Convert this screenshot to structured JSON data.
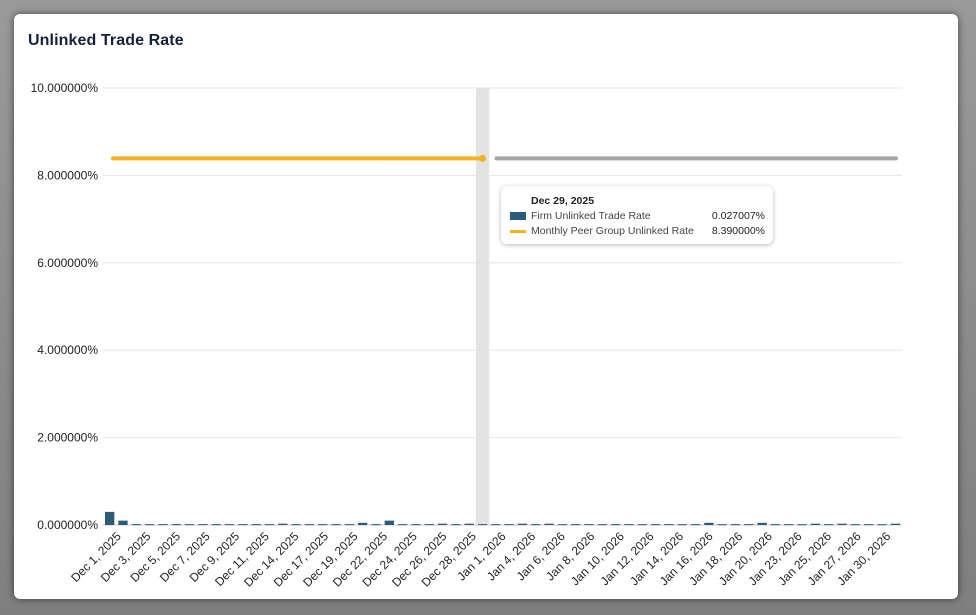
{
  "title": "Unlinked Trade Rate",
  "colors": {
    "bar": "#2c5b79",
    "peer_line": "#f4b122",
    "peer_line_future": "#a3a3a3",
    "hover_band": "#e3e3e3",
    "grid": "#e6e6e6"
  },
  "chart_data": {
    "type": "bar",
    "title": "Unlinked Trade Rate",
    "xlabel": "",
    "ylabel": "",
    "ylim": [
      0,
      10
    ],
    "grid": true,
    "y_ticks": [
      "0.000000%",
      "2.000000%",
      "4.000000%",
      "6.000000%",
      "8.000000%",
      "10.000000%"
    ],
    "x_tick_labels": [
      "Dec 1, 2025",
      "Dec 3, 2025",
      "Dec 5, 2025",
      "Dec 7, 2025",
      "Dec 9, 2025",
      "Dec 11, 2025",
      "Dec 14, 2025",
      "Dec 17, 2025",
      "Dec 19, 2025",
      "Dec 22, 2025",
      "Dec 24, 2025",
      "Dec 26, 2025",
      "Dec 28, 2025",
      "Jan 1, 2026",
      "Jan 4, 2026",
      "Jan 6, 2026",
      "Jan 8, 2026",
      "Jan 10, 2026",
      "Jan 12, 2026",
      "Jan 14, 2026",
      "Jan 16, 2026",
      "Jan 18, 2026",
      "Jan 20, 2026",
      "Jan 23, 2026",
      "Jan 25, 2026",
      "Jan 27, 2026",
      "Jan 30, 2026"
    ],
    "series": [
      {
        "name": "Firm Unlinked Trade Rate",
        "kind": "bar",
        "values": [
          0.3,
          0.1,
          0.02,
          0.02,
          0.02,
          0.02,
          0.02,
          0.02,
          0.02,
          0.02,
          0.02,
          0.02,
          0.02,
          0.03,
          0.02,
          0.02,
          0.02,
          0.02,
          0.02,
          0.05,
          0.02,
          0.1,
          0.02,
          0.02,
          0.02,
          0.03,
          0.02,
          0.03,
          0.02,
          0.02,
          0.02,
          0.03,
          0.02,
          0.03,
          0.02,
          0.02,
          0.02,
          0.02,
          0.02,
          0.02,
          0.02,
          0.02,
          0.02,
          0.02,
          0.02,
          0.05,
          0.02,
          0.02,
          0.02,
          0.05,
          0.02,
          0.02,
          0.02,
          0.03,
          0.02,
          0.03,
          0.02,
          0.02,
          0.02,
          0.03
        ]
      },
      {
        "name": "Monthly Peer Group Unlinked Rate",
        "kind": "line",
        "values": [
          8.39,
          8.39
        ]
      }
    ]
  },
  "tooltip": {
    "date": "Dec 29, 2025",
    "rows": [
      {
        "label": "Firm Unlinked Trade Rate",
        "value": "0.027007%"
      },
      {
        "label": "Monthly Peer Group Unlinked Rate",
        "value": "8.390000%"
      }
    ]
  }
}
